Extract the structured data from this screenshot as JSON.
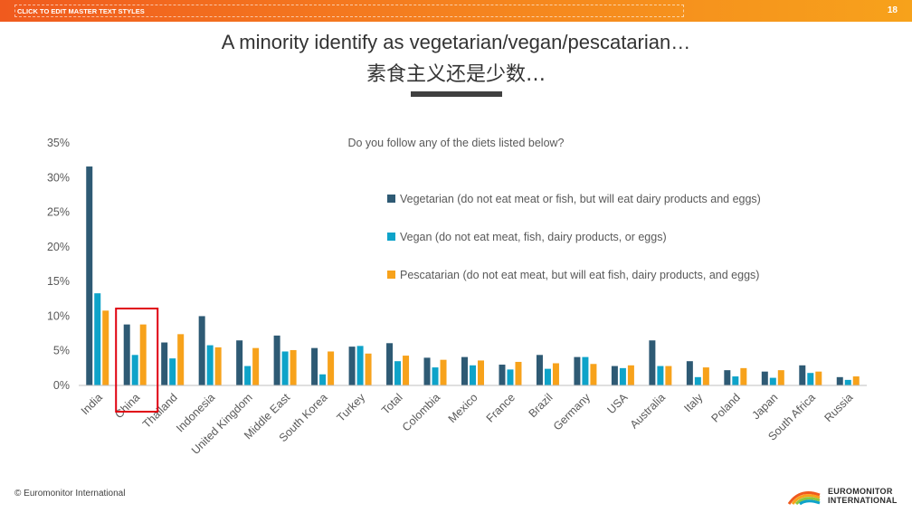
{
  "header": {
    "master_text": "CLICK TO EDIT MASTER TEXT STYLES",
    "page_number": "18"
  },
  "titles": {
    "en": "A minority identify as vegetarian/vegan/pescatarian…",
    "zh": "素食主义还是少数…"
  },
  "footer": {
    "copyright": "© Euromonitor International",
    "logo_line1": "EUROMONITOR",
    "logo_line2": "INTERNATIONAL"
  },
  "colors": {
    "vegetarian": "#2e5a74",
    "vegan": "#0ea3c9",
    "pescatarian": "#f7a21b",
    "highlight": "#e0000f",
    "axis": "#bfbfbf",
    "text": "#595959"
  },
  "chart_data": {
    "type": "bar",
    "title": "Do you follow any of the diets listed below?",
    "xlabel": "",
    "ylabel": "",
    "ylim": [
      0,
      35
    ],
    "yticks": [
      "0%",
      "5%",
      "10%",
      "15%",
      "20%",
      "25%",
      "30%",
      "35%"
    ],
    "ytick_values": [
      0,
      5,
      10,
      15,
      20,
      25,
      30,
      35
    ],
    "grid": false,
    "legend_position": "right",
    "highlighted_category": "China",
    "categories": [
      "India",
      "China",
      "Thailand",
      "Indonesia",
      "United Kingdom",
      "Middle East",
      "South Korea",
      "Turkey",
      "Total",
      "Colombia",
      "Mexico",
      "France",
      "Brazil",
      "Germany",
      "USA",
      "Australia",
      "Italy",
      "Poland",
      "Japan",
      "South Africa",
      "Russia"
    ],
    "series": [
      {
        "name": "Vegetarian (do not eat meat or fish, but will eat dairy products and eggs)",
        "values": [
          31.6,
          8.8,
          6.2,
          10.0,
          6.5,
          7.2,
          5.4,
          5.6,
          6.1,
          4.0,
          4.1,
          3.0,
          4.4,
          4.1,
          2.8,
          6.5,
          3.5,
          2.2,
          2.0,
          2.9,
          1.2
        ]
      },
      {
        "name": "Vegan (do not eat meat, fish, dairy products, or eggs)",
        "values": [
          13.3,
          4.4,
          3.9,
          5.8,
          2.8,
          4.9,
          1.6,
          5.7,
          3.5,
          2.6,
          2.9,
          2.3,
          2.4,
          4.1,
          2.5,
          2.8,
          1.2,
          1.3,
          1.1,
          1.8,
          0.8
        ]
      },
      {
        "name": "Pescatarian (do not eat meat, but will eat fish, dairy products, and eggs)",
        "values": [
          10.8,
          8.8,
          7.4,
          5.5,
          5.4,
          5.1,
          4.9,
          4.6,
          4.3,
          3.7,
          3.6,
          3.4,
          3.2,
          3.1,
          2.9,
          2.8,
          2.6,
          2.5,
          2.2,
          2.0,
          1.3
        ]
      }
    ]
  }
}
